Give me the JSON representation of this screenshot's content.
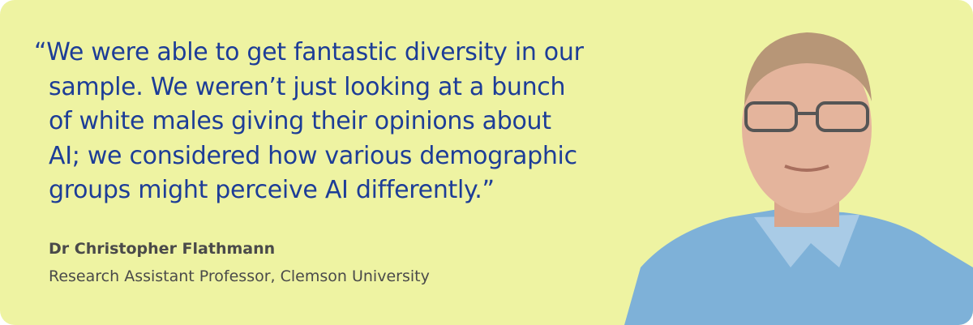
{
  "quote": {
    "lines": [
      "“We were able to get fantastic diversity in our",
      "sample. We weren’t just looking at a bunch",
      "of white males giving their opinions about",
      "AI; we considered how various demographic",
      "groups might perceive AI differently.”"
    ]
  },
  "attribution": {
    "name": "Dr Christopher Flathmann",
    "role": "Research Assistant Professor, Clemson University"
  }
}
